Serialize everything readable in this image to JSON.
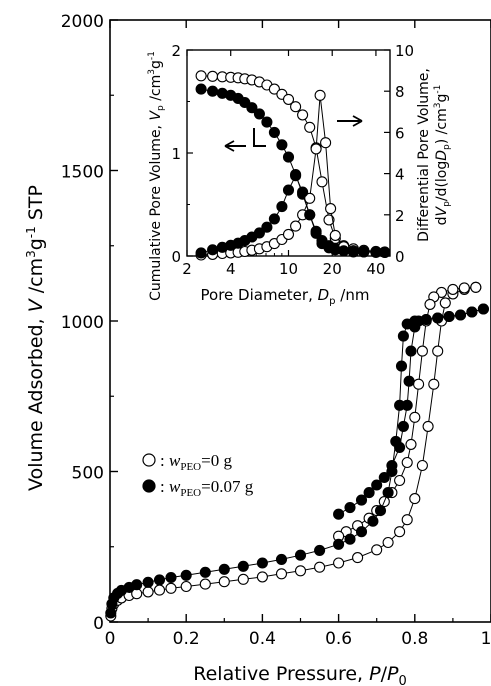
{
  "chart_data": [
    {
      "id": "isotherm",
      "type": "scatter",
      "xlabel": "Relative Pressure, ",
      "xlabel_var": "P",
      "xlabel_slash": "/",
      "xlabel_var2": "P",
      "xlabel_sub": "0",
      "ylabel": "Volume Adsorbed, ",
      "ylabel_var": "V",
      "ylabel_unit_a": " /cm",
      "ylabel_sup1": "3",
      "ylabel_unit_b": "g",
      "ylabel_sup2": "-1",
      "ylabel_unit_c": " STP",
      "xlim": [
        0,
        1.0
      ],
      "ylim": [
        0,
        2000
      ],
      "x_ticks": [
        0,
        0.2,
        0.4,
        0.6,
        0.8,
        1.0
      ],
      "x_tick_labels": [
        "0",
        "0.2",
        "0.4",
        "0.6",
        "0.8",
        "1"
      ],
      "y_ticks": [
        0,
        500,
        1000,
        1500,
        2000
      ],
      "y_tick_labels": [
        "0",
        "500",
        "1000",
        "1500",
        "2000"
      ],
      "legend_placement": "middle-left",
      "series": [
        {
          "legend_prefix": ": ",
          "legend_var": "w",
          "legend_sub": "PEO",
          "legend_value": "=0 g",
          "marker": "open-circle",
          "adsorption": [
            [
              0.002,
              20
            ],
            [
              0.005,
              45
            ],
            [
              0.01,
              60
            ],
            [
              0.02,
              72
            ],
            [
              0.03,
              80
            ],
            [
              0.05,
              88
            ],
            [
              0.07,
              94
            ],
            [
              0.1,
              100
            ],
            [
              0.13,
              106
            ],
            [
              0.16,
              112
            ],
            [
              0.2,
              118
            ],
            [
              0.25,
              126
            ],
            [
              0.3,
              134
            ],
            [
              0.35,
              142
            ],
            [
              0.4,
              150
            ],
            [
              0.45,
              160
            ],
            [
              0.5,
              170
            ],
            [
              0.55,
              182
            ],
            [
              0.6,
              196
            ],
            [
              0.65,
              214
            ],
            [
              0.7,
              240
            ],
            [
              0.73,
              264
            ],
            [
              0.76,
              300
            ],
            [
              0.78,
              340
            ],
            [
              0.8,
              410
            ],
            [
              0.82,
              520
            ],
            [
              0.835,
              650
            ],
            [
              0.85,
              790
            ],
            [
              0.86,
              900
            ],
            [
              0.87,
              1000
            ],
            [
              0.88,
              1060
            ],
            [
              0.9,
              1090
            ],
            [
              0.93,
              1105
            ],
            [
              0.96,
              1112
            ]
          ],
          "desorption": [
            [
              0.96,
              1112
            ],
            [
              0.93,
              1110
            ],
            [
              0.9,
              1105
            ],
            [
              0.87,
              1095
            ],
            [
              0.85,
              1080
            ],
            [
              0.84,
              1055
            ],
            [
              0.83,
              1000
            ],
            [
              0.82,
              900
            ],
            [
              0.81,
              790
            ],
            [
              0.8,
              680
            ],
            [
              0.79,
              590
            ],
            [
              0.78,
              530
            ],
            [
              0.76,
              470
            ],
            [
              0.74,
              430
            ],
            [
              0.72,
              400
            ],
            [
              0.7,
              370
            ],
            [
              0.68,
              345
            ],
            [
              0.65,
              320
            ],
            [
              0.62,
              300
            ],
            [
              0.6,
              285
            ]
          ]
        },
        {
          "legend_prefix": ": ",
          "legend_var": "w",
          "legend_sub": "PEO",
          "legend_value": "=0.07 g",
          "marker": "filled-circle",
          "adsorption": [
            [
              0.002,
              30
            ],
            [
              0.005,
              60
            ],
            [
              0.01,
              80
            ],
            [
              0.02,
              95
            ],
            [
              0.03,
              105
            ],
            [
              0.05,
              115
            ],
            [
              0.07,
              124
            ],
            [
              0.1,
              132
            ],
            [
              0.13,
              140
            ],
            [
              0.16,
              148
            ],
            [
              0.2,
              155
            ],
            [
              0.25,
              165
            ],
            [
              0.3,
              175
            ],
            [
              0.35,
              185
            ],
            [
              0.4,
              196
            ],
            [
              0.45,
              208
            ],
            [
              0.5,
              222
            ],
            [
              0.55,
              238
            ],
            [
              0.6,
              258
            ],
            [
              0.63,
              275
            ],
            [
              0.66,
              300
            ],
            [
              0.69,
              335
            ],
            [
              0.71,
              370
            ],
            [
              0.73,
              430
            ],
            [
              0.74,
              500
            ],
            [
              0.75,
              600
            ],
            [
              0.76,
              720
            ],
            [
              0.765,
              850
            ],
            [
              0.77,
              950
            ],
            [
              0.78,
              990
            ],
            [
              0.8,
              1000
            ],
            [
              0.83,
              1005
            ],
            [
              0.86,
              1010
            ],
            [
              0.89,
              1015
            ],
            [
              0.92,
              1020
            ],
            [
              0.95,
              1030
            ],
            [
              0.98,
              1040
            ]
          ],
          "desorption": [
            [
              0.98,
              1040
            ],
            [
              0.95,
              1030
            ],
            [
              0.92,
              1020
            ],
            [
              0.89,
              1015
            ],
            [
              0.86,
              1010
            ],
            [
              0.83,
              1005
            ],
            [
              0.81,
              1000
            ],
            [
              0.8,
              980
            ],
            [
              0.79,
              900
            ],
            [
              0.785,
              800
            ],
            [
              0.78,
              720
            ],
            [
              0.77,
              650
            ],
            [
              0.76,
              580
            ],
            [
              0.74,
              520
            ],
            [
              0.72,
              480
            ],
            [
              0.7,
              455
            ],
            [
              0.68,
              430
            ],
            [
              0.66,
              405
            ],
            [
              0.63,
              380
            ],
            [
              0.6,
              358
            ]
          ]
        }
      ]
    },
    {
      "id": "inset-psd",
      "type": "scatter",
      "x_scale": "log",
      "xlabel": "Pore Diameter, ",
      "xlabel_var": "D",
      "xlabel_sub": "p",
      "xlabel_unit": " /nm",
      "ylabel_left": "Cumulative Pore Volume, ",
      "ylabel_left_var": "V",
      "ylabel_left_sub": "p",
      "ylabel_left_unit_a": " /cm",
      "ylabel_left_sup1": "3",
      "ylabel_left_unit_b": "g",
      "ylabel_left_sup2": "-1",
      "ylabel_right_line1": "Differential Pore Volume,",
      "ylabel_right_line2_a": "d",
      "ylabel_right_line2_var": "V",
      "ylabel_right_line2_sub": "p",
      "ylabel_right_line2_b": "/d(log",
      "ylabel_right_line2_var2": "D",
      "ylabel_right_line2_sub2": "p",
      "ylabel_right_line2_c": ") /cm",
      "ylabel_right_line2_sup1": "3",
      "ylabel_right_line2_d": "g",
      "ylabel_right_line2_sup2": "-1",
      "xlim": [
        2,
        50
      ],
      "ylim_left": [
        0,
        2
      ],
      "ylim_right": [
        0,
        10
      ],
      "x_ticks": [
        2,
        4,
        10,
        20,
        40
      ],
      "x_tick_labels": [
        "2",
        "4",
        "10",
        "20",
        "40"
      ],
      "y_left_ticks": [
        0,
        1,
        2
      ],
      "y_left_tick_labels": [
        "0",
        "1",
        "2"
      ],
      "y_right_ticks": [
        0,
        2,
        4,
        6,
        8,
        10
      ],
      "y_right_tick_labels": [
        "0",
        "2",
        "4",
        "6",
        "8",
        "10"
      ],
      "series": [
        {
          "marker": "open-circle",
          "axis": "left",
          "points": [
            [
              2.5,
              1.75
            ],
            [
              3.0,
              1.745
            ],
            [
              3.5,
              1.74
            ],
            [
              4.0,
              1.735
            ],
            [
              4.5,
              1.73
            ],
            [
              5.0,
              1.72
            ],
            [
              5.6,
              1.71
            ],
            [
              6.3,
              1.69
            ],
            [
              7.1,
              1.66
            ],
            [
              8.0,
              1.62
            ],
            [
              9.0,
              1.57
            ],
            [
              10.0,
              1.52
            ],
            [
              11.2,
              1.45
            ],
            [
              12.5,
              1.37
            ],
            [
              14.0,
              1.25
            ],
            [
              15.5,
              1.05
            ],
            [
              17.0,
              0.72
            ],
            [
              19.0,
              0.35
            ],
            [
              21.0,
              0.17
            ],
            [
              24.0,
              0.1
            ],
            [
              28.0,
              0.07
            ],
            [
              33.0,
              0.055
            ],
            [
              40.0,
              0.045
            ],
            [
              46.0,
              0.04
            ]
          ]
        },
        {
          "marker": "filled-circle",
          "axis": "left",
          "points": [
            [
              2.5,
              1.62
            ],
            [
              3.0,
              1.6
            ],
            [
              3.5,
              1.58
            ],
            [
              4.0,
              1.56
            ],
            [
              4.5,
              1.53
            ],
            [
              5.0,
              1.49
            ],
            [
              5.6,
              1.44
            ],
            [
              6.3,
              1.38
            ],
            [
              7.1,
              1.3
            ],
            [
              8.0,
              1.2
            ],
            [
              9.0,
              1.08
            ],
            [
              10.0,
              0.96
            ],
            [
              11.2,
              0.79
            ],
            [
              12.5,
              0.6
            ],
            [
              14.0,
              0.4
            ],
            [
              15.5,
              0.24
            ],
            [
              17.0,
              0.15
            ],
            [
              19.0,
              0.1
            ],
            [
              21.0,
              0.075
            ],
            [
              24.0,
              0.06
            ],
            [
              28.0,
              0.05
            ],
            [
              33.0,
              0.045
            ],
            [
              40.0,
              0.04
            ],
            [
              46.0,
              0.035
            ]
          ]
        },
        {
          "marker": "open-circle",
          "axis": "right",
          "points": [
            [
              2.5,
              0.05
            ],
            [
              3.0,
              0.08
            ],
            [
              3.5,
              0.12
            ],
            [
              4.0,
              0.15
            ],
            [
              4.5,
              0.18
            ],
            [
              5.0,
              0.22
            ],
            [
              5.6,
              0.28
            ],
            [
              6.3,
              0.35
            ],
            [
              7.1,
              0.45
            ],
            [
              8.0,
              0.6
            ],
            [
              9.0,
              0.8
            ],
            [
              10.0,
              1.05
            ],
            [
              11.2,
              1.45
            ],
            [
              12.5,
              2.0
            ],
            [
              14.0,
              2.8
            ],
            [
              15.5,
              5.2
            ],
            [
              16.5,
              7.8
            ],
            [
              18.0,
              5.5
            ],
            [
              19.5,
              2.3
            ],
            [
              21.0,
              1.0
            ],
            [
              24.0,
              0.45
            ],
            [
              28.0,
              0.25
            ],
            [
              33.0,
              0.2
            ],
            [
              40.0,
              0.18
            ],
            [
              46.0,
              0.17
            ]
          ]
        },
        {
          "marker": "filled-circle",
          "axis": "right",
          "points": [
            [
              2.5,
              0.15
            ],
            [
              3.0,
              0.3
            ],
            [
              3.5,
              0.42
            ],
            [
              4.0,
              0.52
            ],
            [
              4.5,
              0.62
            ],
            [
              5.0,
              0.75
            ],
            [
              5.6,
              0.92
            ],
            [
              6.3,
              1.12
            ],
            [
              7.1,
              1.4
            ],
            [
              8.0,
              1.8
            ],
            [
              9.0,
              2.4
            ],
            [
              10.0,
              3.2
            ],
            [
              11.2,
              3.9
            ],
            [
              12.5,
              3.1
            ],
            [
              14.0,
              2.0
            ],
            [
              15.5,
              1.1
            ],
            [
              17.0,
              0.6
            ],
            [
              19.0,
              0.4
            ],
            [
              21.0,
              0.3
            ],
            [
              24.0,
              0.25
            ],
            [
              28.0,
              0.2
            ],
            [
              33.0,
              0.2
            ],
            [
              40.0,
              0.18
            ],
            [
              46.0,
              0.18
            ]
          ]
        }
      ]
    }
  ]
}
